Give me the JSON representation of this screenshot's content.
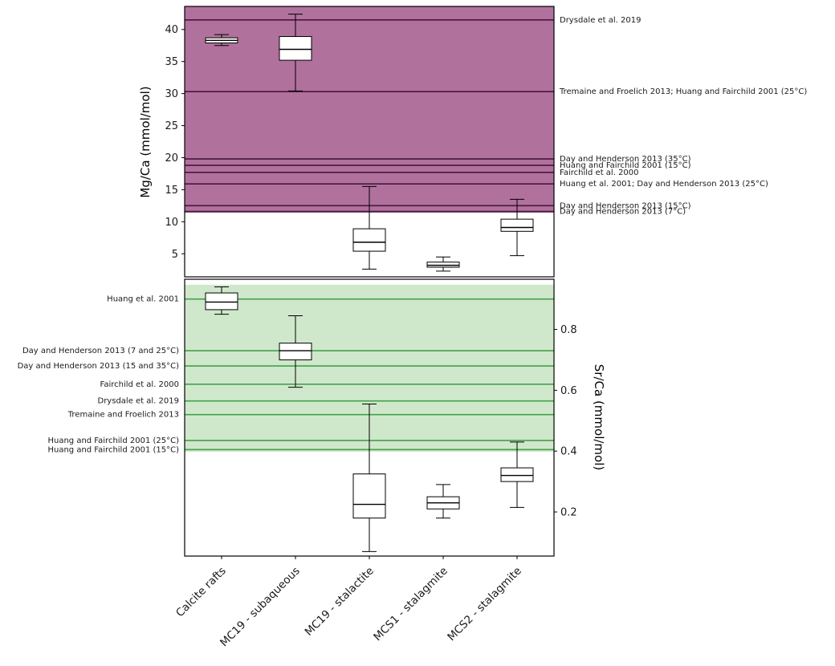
{
  "figure": {
    "background": "#ffffff",
    "categories": [
      "Calcite rafts",
      "MC19 - subaqueous",
      "MC19 - stalactite",
      "MCS1 - stalagmite",
      "MCS2 - stalagmite"
    ]
  },
  "chart_data": [
    {
      "type": "boxplot",
      "panel": "top",
      "ylabel": "Mg/Ca (mmol/mol)",
      "ylim": [
        1.4,
        43.6
      ],
      "ytick_values": [
        5,
        10,
        15,
        20,
        25,
        30,
        35,
        40
      ],
      "ytick_labels": [
        "5",
        "10",
        "15",
        "20",
        "25",
        "30",
        "35",
        "40"
      ],
      "tick_side": "left",
      "label_side": "right",
      "grid": false,
      "categories": [
        "Calcite rafts",
        "MC19 - subaqueous",
        "MC19 - stalactite",
        "MCS1 - stalagmite",
        "MCS2 - stalagmite"
      ],
      "band": {
        "from": 11.4,
        "to": 43.6,
        "color": "#b1719d",
        "opacity": 1
      },
      "line_color": "#47163f",
      "label_color": "#3a3a3a",
      "reference_lines": [
        {
          "value": 41.5,
          "label": "Drysdale et al. 2019"
        },
        {
          "value": 30.3,
          "label": "Tremaine and Froelich 2013; Huang and Fairchild 2001 (25°C)"
        },
        {
          "value": 19.8,
          "label": "Day and Henderson 2013 (35°C)"
        },
        {
          "value": 18.8,
          "label": "Huang and Fairchild 2001 (15°C)"
        },
        {
          "value": 17.7,
          "label": "Fairchild et al. 2000"
        },
        {
          "value": 15.9,
          "label": "Huang et al. 2001; Day and Henderson 2013 (25°C)"
        },
        {
          "value": 12.5,
          "label": "Day and Henderson 2013 (15°C)"
        },
        {
          "value": 11.6,
          "label": "Day and Henderson 2013 (7°C)"
        }
      ],
      "boxes": [
        {
          "category": "Calcite rafts",
          "whisker_low": 37.5,
          "q1": 37.9,
          "median": 38.3,
          "q3": 38.7,
          "whisker_high": 39.2
        },
        {
          "category": "MC19 - subaqueous",
          "whisker_low": 30.4,
          "q1": 35.2,
          "median": 36.9,
          "q3": 38.9,
          "whisker_high": 42.4
        },
        {
          "category": "MC19 - stalactite",
          "whisker_low": 2.6,
          "q1": 5.4,
          "median": 6.8,
          "q3": 8.9,
          "whisker_high": 15.5
        },
        {
          "category": "MCS1 - stalagmite",
          "whisker_low": 2.3,
          "q1": 2.9,
          "median": 3.2,
          "q3": 3.7,
          "whisker_high": 4.5
        },
        {
          "category": "MCS2 - stalagmite",
          "whisker_low": 4.7,
          "q1": 8.5,
          "median": 9.1,
          "q3": 10.4,
          "whisker_high": 13.5
        }
      ]
    },
    {
      "type": "boxplot",
      "panel": "bottom",
      "ylabel": "Sr/Ca (mmol/mol)",
      "ylim": [
        0.055,
        0.965
      ],
      "ytick_values": [
        0.2,
        0.4,
        0.6,
        0.8
      ],
      "ytick_labels": [
        "0.2",
        "0.4",
        "0.6",
        "0.8"
      ],
      "tick_side": "right",
      "label_side": "left",
      "grid": false,
      "categories": [
        "Calcite rafts",
        "MC19 - subaqueous",
        "MC19 - stalactite",
        "MCS1 - stalagmite",
        "MCS2 - stalagmite"
      ],
      "band": {
        "from": 0.398,
        "to": 0.947,
        "color": "#cfe8cb",
        "opacity": 1
      },
      "line_color": "#44a04c",
      "label_color": "#3a3a3a",
      "reference_lines": [
        {
          "value": 0.9,
          "label": "Huang et al. 2001"
        },
        {
          "value": 0.73,
          "label": "Day and Henderson 2013 (7 and 25°C)"
        },
        {
          "value": 0.68,
          "label": "Day and Henderson 2013 (15 and 35°C)"
        },
        {
          "value": 0.62,
          "label": "Fairchild et al. 2000"
        },
        {
          "value": 0.565,
          "label": "Drysdale et al. 2019"
        },
        {
          "value": 0.52,
          "label": "Tremaine and Froelich 2013"
        },
        {
          "value": 0.435,
          "label": "Huang and Fairchild 2001 (25°C)"
        },
        {
          "value": 0.405,
          "label": "Huang and Fairchild 2001 (15°C)"
        }
      ],
      "boxes": [
        {
          "category": "Calcite rafts",
          "whisker_low": 0.85,
          "q1": 0.865,
          "median": 0.89,
          "q3": 0.92,
          "whisker_high": 0.94
        },
        {
          "category": "MC19 - subaqueous",
          "whisker_low": 0.61,
          "q1": 0.7,
          "median": 0.73,
          "q3": 0.755,
          "whisker_high": 0.845
        },
        {
          "category": "MC19 - stalactite",
          "whisker_low": 0.07,
          "q1": 0.18,
          "median": 0.225,
          "q3": 0.325,
          "whisker_high": 0.555
        },
        {
          "category": "MCS1 - stalagmite",
          "whisker_low": 0.18,
          "q1": 0.21,
          "median": 0.23,
          "q3": 0.25,
          "whisker_high": 0.29
        },
        {
          "category": "MCS2 - stalagmite",
          "whisker_low": 0.215,
          "q1": 0.3,
          "median": 0.32,
          "q3": 0.345,
          "whisker_high": 0.43
        }
      ]
    }
  ]
}
